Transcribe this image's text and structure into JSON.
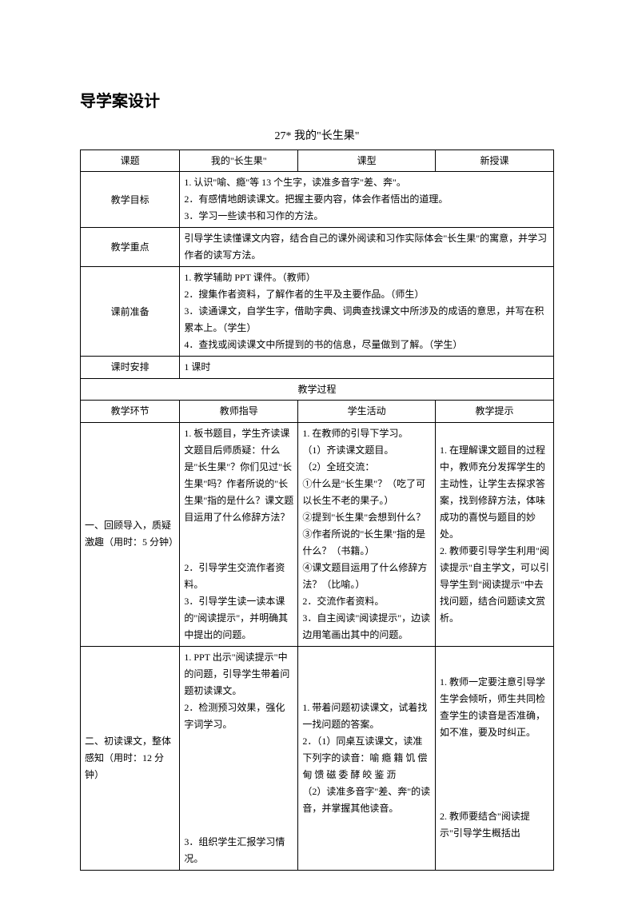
{
  "doc_title": "导学案设计",
  "lesson_title": "27* 我的\"长生果\"",
  "header_row": {
    "c1": "课题",
    "c2": "我的\"长生果\"",
    "c3": "课型",
    "c4": "新授课"
  },
  "goals": {
    "label": "教学目标",
    "text": "1. 认识\"喻、瘾\"等 13 个生字，读准多音字\"差、奔\"。\n2．有感情地朗读课文。把握主要内容，体会作者悟出的道理。\n3．学习一些读书和习作的方法。"
  },
  "focus": {
    "label": "教学重点",
    "text": "引导学生读懂课文内容，结合自己的课外阅读和习作实际体会\"长生果\"的寓意，并学习作者的读写方法。"
  },
  "prep": {
    "label": "课前准备",
    "text": "1. 教学辅助 PPT 课件。（教师）\n2．搜集作者资料，了解作者的生平及主要作品。（师生）\n3．读通课文，自学生字，借助字典、词典查找课文中所涉及的成语的意思，并写在积累本上。（学生）\n4．查找或阅读课文中所提到的书的信息，尽量做到了解。（学生）"
  },
  "sched": {
    "label": "课时安排",
    "text": "1 课时"
  },
  "process_header": "教学过程",
  "process_cols": {
    "c1": "教学环节",
    "c2": "教师指导",
    "c3": "学生活动",
    "c4": "教学提示"
  },
  "step1": {
    "c1": "一、回顾导入，质疑激趣（用时：5 分钟）",
    "c2": "1. 板书题目，学生齐读课文题目后师质疑：什么是\"长生果\"？你们见过\"长生果\"吗？作者所说的\"长生果\"指的是什么？课文题目运用了什么修辞方法？\n\n2．引导学生交流作者资料。\n3．引导学生读一读本课的\"阅读提示\"，并明确其中提出的问题。",
    "c3": "1. 在教师的引导下学习。\n（1）齐读课文题目。\n（2）全班交流：\n①什么是\"长生果\"？（吃了可以长生不老的果子。）\n②提到\"长生果\"会想到什么？\n③作者所说的\"长生果\"指的是什么？（书籍。）\n④课文题目运用了什么修辞方法？（比喻。）\n2．交流作者资料。\n3．自主阅读\"阅读提示\"，边读边用笔画出其中的问题。",
    "c4": "1. 在理解课文题目的过程中，教师充分发挥学生的主动性，让学生去探求答案，找到修辞方法，体味成功的喜悦与题目的妙处。\n2. 教师要引导学生利用\"阅读提示\"自主学文，可以引导学生到\"阅读提示\"中去找问题，结合问题读文赏析。"
  },
  "step2": {
    "c1": "二、初读课文，整体感知（用时：12 分钟）",
    "c2": "1. PPT 出示\"阅读提示\"中的问题，引导学生带着问题初读课文。\n2．检测预习效果，强化字词学习。\n\n\n\n3．组织学生汇报学习情况。",
    "c3": "1. 带着问题初读课文，试着找一找问题的答案。\n2．（1）同桌互读课文，读准下列字的读音：喻  瘾  籍  饥  偿  甸  馈  磁  委  酵  皎  鉴  沥\n（2）读准多音字\"差、奔\"的读音，并掌握其他读音。",
    "c4": "1. 教师一定要注意引导学生学会倾听，师生共同检查学生的读音是否准确，如不准，要及时纠正。\n\n\n2. 教师要结合\"阅读提示\"引导学生概括出"
  }
}
